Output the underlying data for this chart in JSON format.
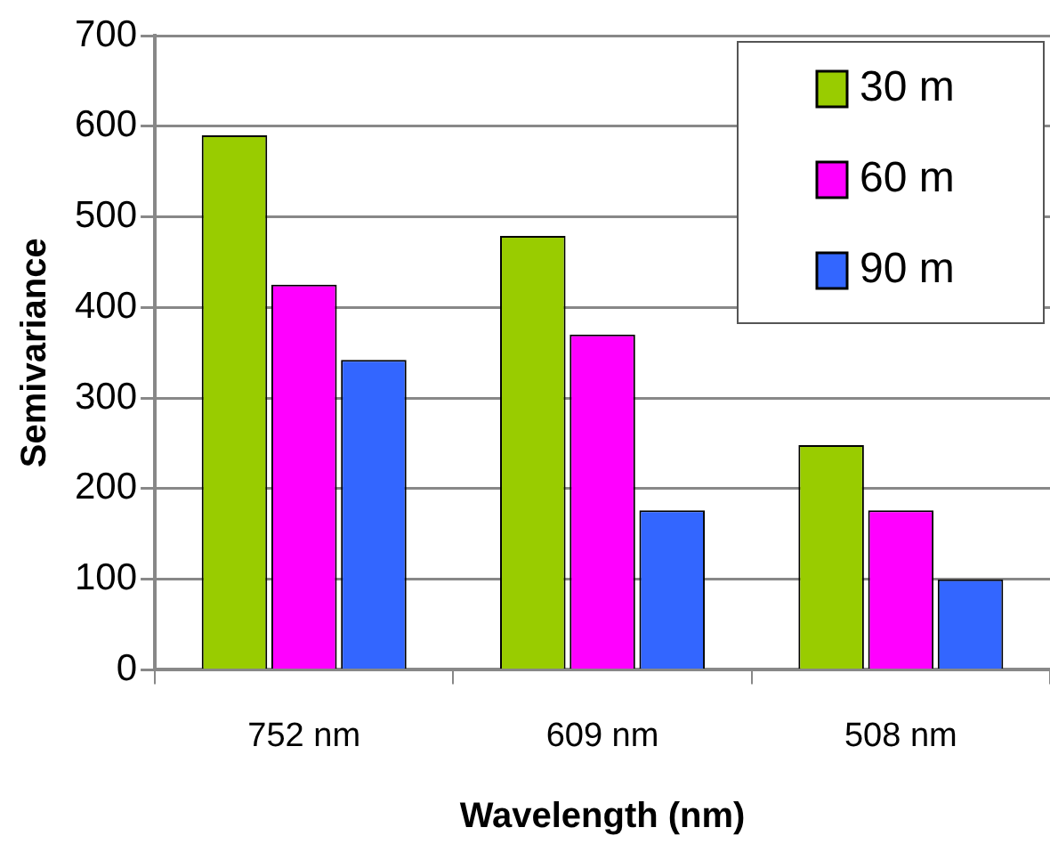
{
  "chart_data": {
    "type": "bar",
    "xlabel": "Wavelength (nm)",
    "ylabel": "Semivariance",
    "categories": [
      "752 nm",
      "609 nm",
      "508 nm"
    ],
    "series": [
      {
        "name": "30 m",
        "color": "#99cc00",
        "values": [
          590,
          479,
          248
        ]
      },
      {
        "name": "60 m",
        "color": "#ff00ff",
        "values": [
          425,
          370,
          176
        ]
      },
      {
        "name": "90 m",
        "color": "#3366ff",
        "values": [
          342,
          176,
          100
        ]
      }
    ],
    "ylim": [
      0,
      700
    ],
    "yticks": [
      0,
      100,
      200,
      300,
      400,
      500,
      600,
      700
    ],
    "grid": "y",
    "legend": "top right"
  }
}
